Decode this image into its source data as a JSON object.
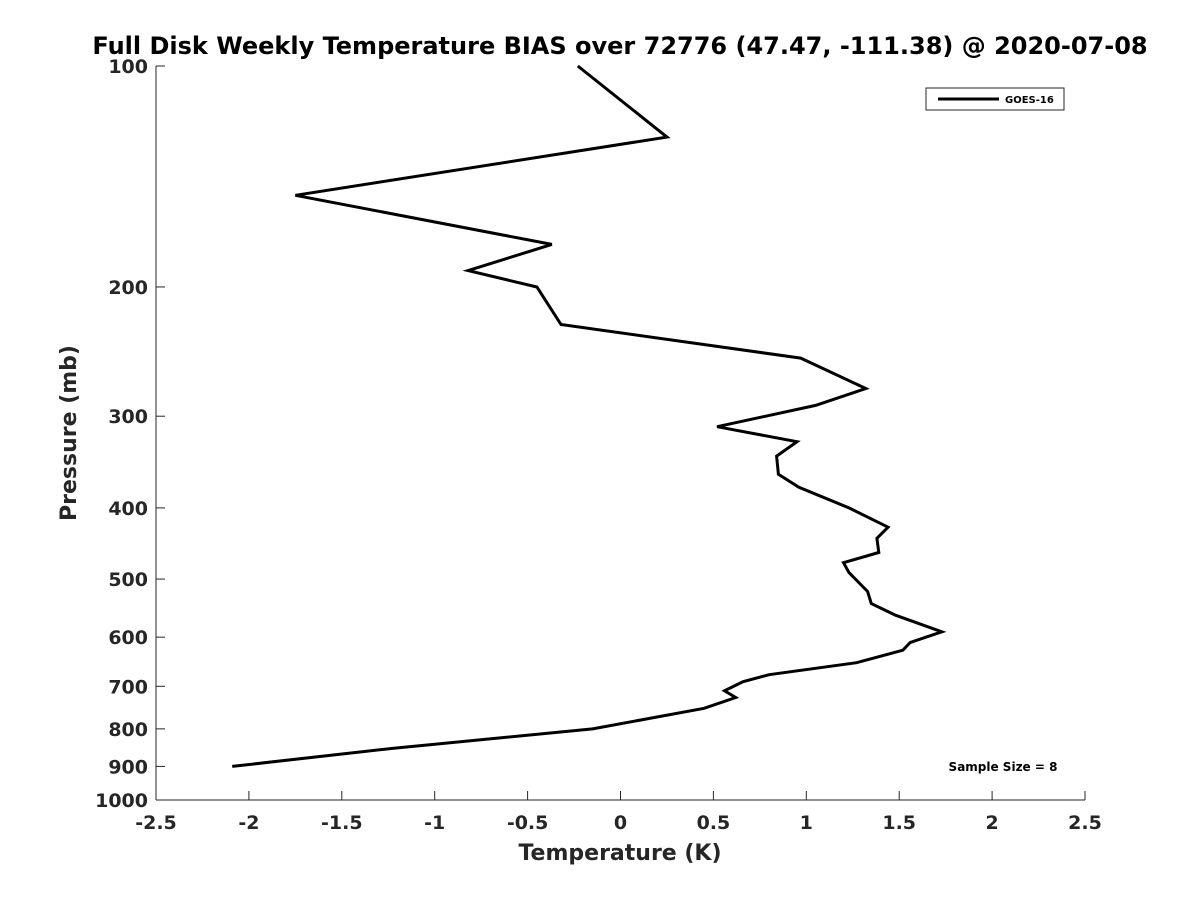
{
  "chart_data": {
    "type": "line",
    "title": "Full Disk Weekly Temperature BIAS over 72776 (47.47, -111.38) @ 2020-07-08",
    "xlabel": "Temperature (K)",
    "ylabel": "Pressure (mb)",
    "xlim": [
      -2.5,
      2.5
    ],
    "ylim": [
      100,
      1000
    ],
    "yscale": "log",
    "yreversed": true,
    "grid": false,
    "xticks": [
      -2.5,
      -2,
      -1.5,
      -1,
      -0.5,
      0,
      0.5,
      1,
      1.5,
      2,
      2.5
    ],
    "xtick_labels": [
      "-2.5",
      "-2",
      "-1.5",
      "-1",
      "-0.5",
      "0",
      "0.5",
      "1",
      "1.5",
      "2",
      "2.5"
    ],
    "yticks": [
      100,
      200,
      300,
      400,
      500,
      600,
      700,
      800,
      900,
      1000
    ],
    "ytick_labels": [
      "100",
      "200",
      "300",
      "400",
      "500",
      "600",
      "700",
      "800",
      "900",
      "1000"
    ],
    "legend_position": "top-right",
    "series": [
      {
        "name": "GOES-16",
        "color": "#000000",
        "points": [
          {
            "t": -0.23,
            "p": 100
          },
          {
            "t": 0.25,
            "p": 125
          },
          {
            "t": -1.75,
            "p": 150
          },
          {
            "t": -0.37,
            "p": 175
          },
          {
            "t": -0.82,
            "p": 190
          },
          {
            "t": -0.45,
            "p": 200
          },
          {
            "t": -0.32,
            "p": 225
          },
          {
            "t": 0.97,
            "p": 250
          },
          {
            "t": 1.32,
            "p": 275
          },
          {
            "t": 1.05,
            "p": 290
          },
          {
            "t": 0.52,
            "p": 310
          },
          {
            "t": 0.95,
            "p": 325
          },
          {
            "t": 0.84,
            "p": 340
          },
          {
            "t": 0.85,
            "p": 360
          },
          {
            "t": 0.96,
            "p": 375
          },
          {
            "t": 1.23,
            "p": 400
          },
          {
            "t": 1.44,
            "p": 425
          },
          {
            "t": 1.38,
            "p": 440
          },
          {
            "t": 1.39,
            "p": 460
          },
          {
            "t": 1.2,
            "p": 475
          },
          {
            "t": 1.23,
            "p": 490
          },
          {
            "t": 1.33,
            "p": 520
          },
          {
            "t": 1.35,
            "p": 540
          },
          {
            "t": 1.48,
            "p": 560
          },
          {
            "t": 1.73,
            "p": 590
          },
          {
            "t": 1.56,
            "p": 610
          },
          {
            "t": 1.52,
            "p": 625
          },
          {
            "t": 1.27,
            "p": 650
          },
          {
            "t": 0.8,
            "p": 675
          },
          {
            "t": 0.66,
            "p": 690
          },
          {
            "t": 0.56,
            "p": 710
          },
          {
            "t": 0.62,
            "p": 725
          },
          {
            "t": 0.45,
            "p": 750
          },
          {
            "t": -0.15,
            "p": 800
          },
          {
            "t": -1.22,
            "p": 850
          },
          {
            "t": -2.09,
            "p": 900
          }
        ]
      }
    ],
    "annotations": [
      {
        "text": "Sample Size = 8",
        "position": "bottom-right"
      }
    ]
  }
}
